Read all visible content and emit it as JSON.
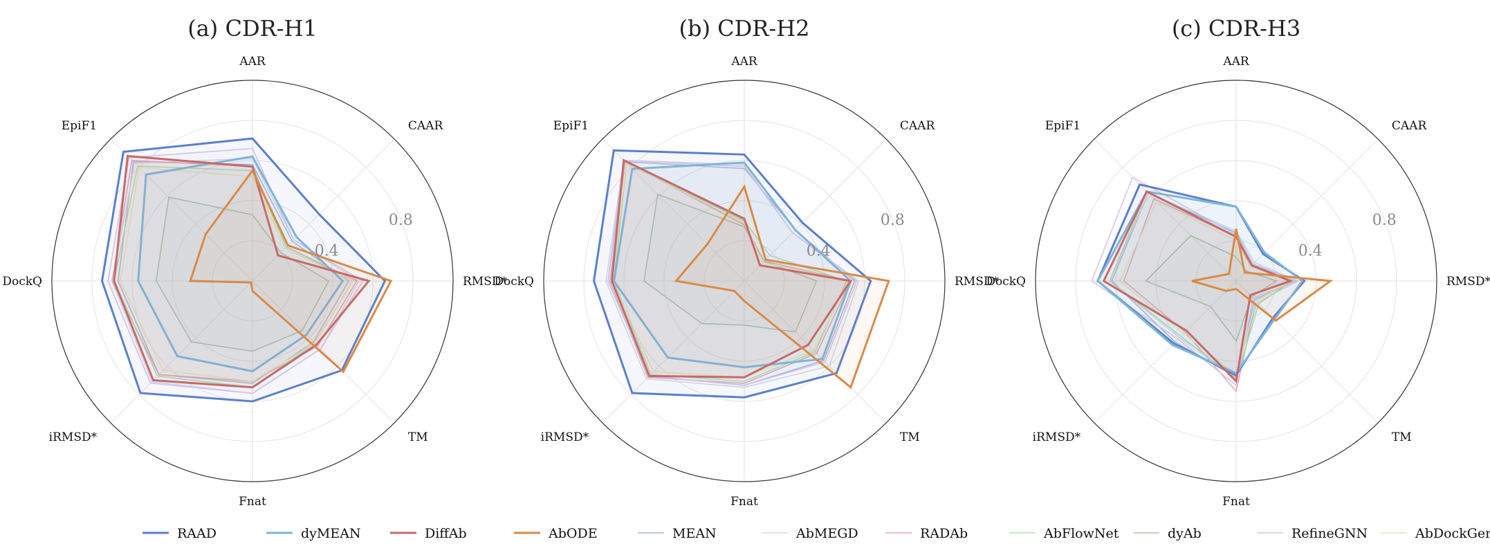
{
  "chart_data": [
    {
      "type": "radar",
      "title": "(a) CDR-H1",
      "axes": [
        "AAR",
        "CAAR",
        "RMSD*",
        "TM",
        "Fnat",
        "iRMSD*",
        "DockQ",
        "EpiF1"
      ],
      "rlim": [
        0,
        1
      ],
      "ticks": [
        0.4,
        0.8
      ],
      "series": [
        {
          "name": "RAAD",
          "values": [
            0.71,
            0.47,
            0.66,
            0.63,
            0.6,
            0.79,
            0.75,
            0.91
          ]
        },
        {
          "name": "dyMEAN",
          "values": [
            0.62,
            0.31,
            0.45,
            0.38,
            0.45,
            0.53,
            0.57,
            0.75
          ]
        },
        {
          "name": "DiffAb",
          "values": [
            0.57,
            0.18,
            0.58,
            0.45,
            0.53,
            0.7,
            0.69,
            0.88
          ]
        },
        {
          "name": "AbODE",
          "values": [
            0.55,
            0.25,
            0.69,
            0.64,
            0.05,
            0.01,
            0.31,
            0.33
          ]
        },
        {
          "name": "MEAN",
          "values": [
            0.58,
            0.28,
            0.48,
            0.43,
            0.51,
            0.66,
            0.67,
            0.84
          ]
        },
        {
          "name": "AbMEGD",
          "values": [
            0.61,
            0.29,
            0.53,
            0.48,
            0.56,
            0.71,
            0.7,
            0.83
          ]
        },
        {
          "name": "RADAb",
          "values": [
            0.57,
            0.24,
            0.52,
            0.46,
            0.5,
            0.66,
            0.7,
            0.85
          ]
        },
        {
          "name": "AbFlowNet",
          "values": [
            0.55,
            0.24,
            0.5,
            0.44,
            0.53,
            0.67,
            0.69,
            0.81
          ]
        },
        {
          "name": "dyAb",
          "values": [
            0.33,
            0.2,
            0.38,
            0.35,
            0.35,
            0.43,
            0.48,
            0.59
          ]
        },
        {
          "name": "RefineGNN",
          "values": [
            0.66,
            0.29,
            0.55,
            0.48,
            0.56,
            0.72,
            0.72,
            0.87
          ]
        },
        {
          "name": "AbDockGen",
          "values": [
            0.52,
            0.23,
            0.5,
            0.44,
            0.5,
            0.63,
            0.66,
            0.8
          ]
        }
      ]
    },
    {
      "type": "radar",
      "title": "(b) CDR-H2",
      "axes": [
        "AAR",
        "CAAR",
        "RMSD*",
        "TM",
        "Fnat",
        "iRMSD*",
        "DockQ",
        "EpiF1"
      ],
      "rlim": [
        0,
        1
      ],
      "ticks": [
        0.4,
        0.8
      ],
      "series": [
        {
          "name": "RAAD",
          "values": [
            0.63,
            0.41,
            0.63,
            0.65,
            0.58,
            0.79,
            0.75,
            0.92
          ]
        },
        {
          "name": "dyMEAN",
          "values": [
            0.59,
            0.36,
            0.53,
            0.55,
            0.43,
            0.54,
            0.65,
            0.79
          ]
        },
        {
          "name": "DiffAb",
          "values": [
            0.31,
            0.11,
            0.53,
            0.45,
            0.48,
            0.67,
            0.66,
            0.85
          ]
        },
        {
          "name": "AbODE",
          "values": [
            0.47,
            0.15,
            0.72,
            0.75,
            0.1,
            0.07,
            0.34,
            0.26
          ]
        },
        {
          "name": "MEAN",
          "values": [
            0.56,
            0.36,
            0.55,
            0.56,
            0.52,
            0.67,
            0.68,
            0.84
          ]
        },
        {
          "name": "AbMEGD",
          "values": [
            0.58,
            0.34,
            0.57,
            0.6,
            0.53,
            0.69,
            0.69,
            0.85
          ]
        },
        {
          "name": "RADAb",
          "values": [
            0.28,
            0.14,
            0.53,
            0.51,
            0.51,
            0.68,
            0.67,
            0.84
          ]
        },
        {
          "name": "AbFlowNet",
          "values": [
            0.3,
            0.18,
            0.51,
            0.5,
            0.5,
            0.66,
            0.65,
            0.83
          ]
        },
        {
          "name": "dyAb",
          "values": [
            0.27,
            0.14,
            0.36,
            0.36,
            0.22,
            0.3,
            0.5,
            0.61
          ]
        },
        {
          "name": "RefineGNN",
          "values": [
            0.57,
            0.34,
            0.56,
            0.57,
            0.52,
            0.67,
            0.68,
            0.85
          ]
        },
        {
          "name": "AbDockGen",
          "values": [
            0.29,
            0.13,
            0.52,
            0.49,
            0.48,
            0.64,
            0.66,
            0.83
          ]
        }
      ]
    },
    {
      "type": "radar",
      "title": "(c) CDR-H3",
      "axes": [
        "AAR",
        "CAAR",
        "RMSD*",
        "TM",
        "Fnat",
        "iRMSD*",
        "DockQ",
        "EpiF1"
      ],
      "rlim": [
        0,
        1
      ],
      "ticks": [
        0.4,
        0.8
      ],
      "series": [
        {
          "name": "RAAD",
          "values": [
            0.37,
            0.19,
            0.34,
            0.26,
            0.47,
            0.44,
            0.69,
            0.68
          ]
        },
        {
          "name": "dyMEAN",
          "values": [
            0.37,
            0.2,
            0.33,
            0.27,
            0.46,
            0.45,
            0.69,
            0.63
          ]
        },
        {
          "name": "DiffAb",
          "values": [
            0.22,
            0.11,
            0.27,
            0.1,
            0.5,
            0.35,
            0.66,
            0.63
          ]
        },
        {
          "name": "AbODE",
          "values": [
            0.26,
            0.06,
            0.47,
            0.28,
            0.04,
            0.07,
            0.22,
            0.05
          ]
        },
        {
          "name": "MEAN",
          "values": [
            0.24,
            0.12,
            0.3,
            0.13,
            0.48,
            0.43,
            0.62,
            0.62
          ]
        },
        {
          "name": "AbMEGD",
          "values": [
            0.25,
            0.13,
            0.31,
            0.15,
            0.46,
            0.4,
            0.63,
            0.62
          ]
        },
        {
          "name": "RADAb",
          "values": [
            0.22,
            0.12,
            0.28,
            0.14,
            0.55,
            0.36,
            0.56,
            0.58
          ]
        },
        {
          "name": "AbFlowNet",
          "values": [
            0.22,
            0.1,
            0.28,
            0.16,
            0.49,
            0.39,
            0.63,
            0.63
          ]
        },
        {
          "name": "dyAb",
          "values": [
            0.12,
            0.07,
            0.2,
            0.11,
            0.3,
            0.18,
            0.45,
            0.32
          ]
        },
        {
          "name": "RefineGNN",
          "values": [
            0.23,
            0.12,
            0.3,
            0.12,
            0.52,
            0.41,
            0.72,
            0.73
          ]
        },
        {
          "name": "AbDockGen",
          "values": [
            0.2,
            0.1,
            0.27,
            0.14,
            0.47,
            0.37,
            0.58,
            0.56
          ]
        }
      ]
    }
  ],
  "legend": {
    "placement": "bottom",
    "items": [
      {
        "name": "RAAD",
        "color": "#5b7fcc",
        "width": 3
      },
      {
        "name": "dyMEAN",
        "color": "#7fb5d8",
        "width": 3
      },
      {
        "name": "DiffAb",
        "color": "#c66a6a",
        "width": 3
      },
      {
        "name": "AbODE",
        "color": "#d98a48",
        "width": 3
      },
      {
        "name": "MEAN",
        "color": "#a7bad4",
        "width": 1.6
      },
      {
        "name": "AbMEGD",
        "color": "#d7dbe4",
        "width": 1.6
      },
      {
        "name": "RADAb",
        "color": "#e2aab4",
        "width": 1.6
      },
      {
        "name": "AbFlowNet",
        "color": "#aee0a8",
        "width": 1.6
      },
      {
        "name": "dyAb",
        "color": "#a9c5a1",
        "width": 1.6
      },
      {
        "name": "RefineGNN",
        "color": "#d9c6ea",
        "width": 1.6
      },
      {
        "name": "AbDockGen",
        "color": "#e3e6b6",
        "width": 1.6
      }
    ]
  }
}
